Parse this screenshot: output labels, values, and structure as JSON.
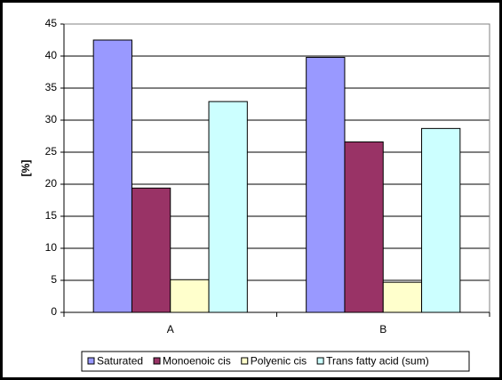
{
  "chart_data": {
    "type": "bar",
    "y_label": "[%]",
    "categories": [
      "A",
      "B"
    ],
    "series": [
      {
        "name": "Saturated",
        "color": "#9999ff",
        "values": [
          42.5,
          39.8
        ]
      },
      {
        "name": "Monoenoic cis",
        "color": "#993366",
        "values": [
          19.4,
          26.6
        ]
      },
      {
        "name": "Polyenic cis",
        "color": "#ffffcc",
        "values": [
          5.1,
          4.7
        ]
      },
      {
        "name": "Trans fatty acid (sum)",
        "color": "#ccffff",
        "values": [
          32.9,
          28.7
        ]
      }
    ],
    "ylim": [
      0,
      45
    ],
    "yticks": [
      0,
      5,
      10,
      15,
      20,
      25,
      30,
      35,
      40,
      45
    ],
    "grid": true,
    "legend": "bottom"
  }
}
